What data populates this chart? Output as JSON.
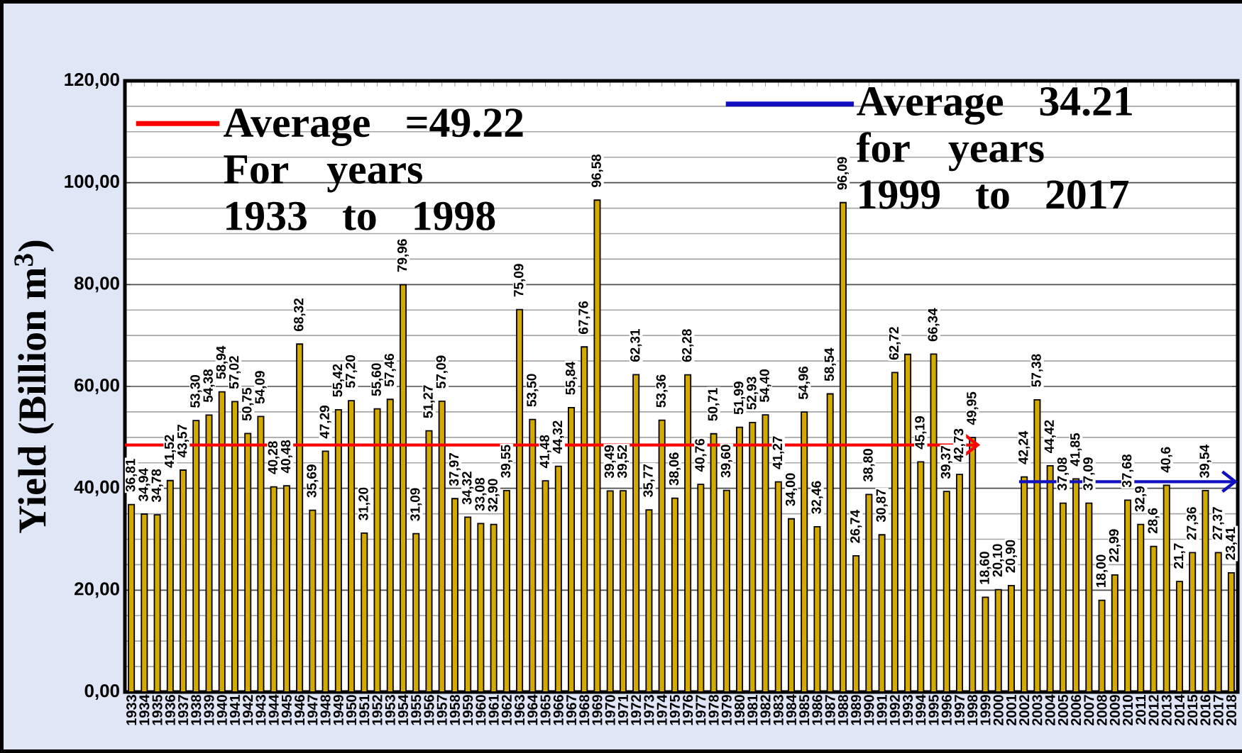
{
  "chart_data": {
    "type": "bar",
    "ylabel": "Yield  (Billion m$^{3}$)",
    "x": [
      1933,
      1934,
      1935,
      1936,
      1937,
      1938,
      1939,
      1940,
      1941,
      1942,
      1943,
      1944,
      1945,
      1946,
      1947,
      1948,
      1949,
      1950,
      1951,
      1952,
      1953,
      1954,
      1955,
      1956,
      1957,
      1958,
      1959,
      1960,
      1961,
      1962,
      1963,
      1964,
      1965,
      1966,
      1967,
      1968,
      1969,
      1970,
      1971,
      1972,
      1973,
      1974,
      1975,
      1976,
      1977,
      1978,
      1979,
      1980,
      1981,
      1982,
      1983,
      1984,
      1985,
      1986,
      1987,
      1988,
      1989,
      1990,
      1991,
      1992,
      1993,
      1994,
      1995,
      1996,
      1997,
      1998,
      1999,
      2000,
      2001,
      2002,
      2003,
      2004,
      2005,
      2006,
      2007,
      2008,
      2009,
      2010,
      2011,
      2012,
      2013,
      2014,
      2015,
      2016,
      2017,
      2018
    ],
    "series": [
      {
        "color": "#d4aa00",
        "values": [
          36.81,
          34.94,
          34.78,
          41.52,
          43.57,
          53.3,
          54.38,
          58.94,
          57.02,
          50.75,
          54.09,
          40.28,
          40.48,
          68.32,
          35.69,
          47.29,
          55.42,
          57.2,
          31.2,
          55.6,
          57.46,
          79.96,
          31.09,
          51.27,
          57.09,
          37.97,
          34.32,
          33.08,
          32.9,
          39.55,
          75.09,
          53.5,
          41.48,
          44.32,
          55.84,
          67.76,
          96.58,
          39.49,
          39.52,
          62.31,
          35.77,
          53.36,
          38.06,
          62.28,
          40.76,
          50.71,
          39.6,
          51.99,
          52.93,
          54.4,
          41.27,
          34.0,
          54.96,
          32.46,
          58.54,
          96.09,
          26.74,
          38.8,
          30.87,
          62.72,
          66.3,
          45.19,
          66.34,
          39.37,
          42.73,
          49.95,
          18.6,
          20.1,
          20.9,
          42.24,
          57.38,
          44.42,
          37.08,
          41.85,
          37.09,
          18.0,
          22.99,
          37.68,
          32.9,
          28.6,
          40.6,
          21.7,
          27.36,
          39.54,
          27.37,
          23.41
        ],
        "value_labels": [
          "36,81",
          "34,94",
          "34,78",
          "41,52",
          "43,57",
          "53,30",
          "54,38",
          "58,94",
          "57,02",
          "50,75",
          "54,09",
          "40,28",
          "40,48",
          "68,32",
          "35,69",
          "47,29",
          "55,42",
          "57,20",
          "31,20",
          "55,60",
          "57,46",
          "79,96",
          "31,09",
          "51,27",
          "57,09",
          "37,97",
          "34,32",
          "33,08",
          "32,90",
          "39,55",
          "75,09",
          "53,50",
          "41,48",
          "44,32",
          "55,84",
          "67,76",
          "96,58",
          "39,49",
          "39,52",
          "62,31",
          "35,77",
          "53,36",
          "38,06",
          "62,28",
          "40,76",
          "50,71",
          "39,60",
          "51,99",
          "52,93",
          "54,40",
          "41,27",
          "34,00",
          "54,96",
          "32,46",
          "58,54",
          "96,09",
          "26,74",
          "38,80",
          "30,87",
          "62,72",
          null,
          "45,19",
          "66,34",
          "39,37",
          "42,73",
          "49,95",
          "18,60",
          "20,10",
          "20,90",
          "42,24",
          "57,38",
          "44,42",
          "37,08",
          "41,85",
          "37,09",
          "18,00",
          "22,99",
          "37,68",
          "32,9",
          "28,6",
          "40,6",
          "21,7",
          "27,36",
          "39,54",
          "27,37",
          "23,41"
        ]
      },
      {
        "type": "line",
        "name": "Average =49.22 For years 1933 to 1998",
        "color": "#ff0000",
        "x": [
          1932.5,
          1998.6
        ],
        "values": [
          48.5,
          48.5
        ]
      },
      {
        "type": "line",
        "name": "Average 34.21 for years 1999 to 2017",
        "color": "#1010c0",
        "x": [
          2001.6,
          2018.5
        ],
        "values": [
          41.3,
          41.3
        ]
      }
    ],
    "xlim": [
      1932.5,
      2018.5
    ],
    "xticks": [
      1933,
      1934,
      1935,
      1936,
      1937,
      1938,
      1939,
      1940,
      1941,
      1942,
      1943,
      1944,
      1945,
      1946,
      1947,
      1948,
      1949,
      1950,
      1951,
      1952,
      1953,
      1954,
      1955,
      1956,
      1957,
      1958,
      1959,
      1960,
      1961,
      1962,
      1963,
      1964,
      1965,
      1966,
      1967,
      1968,
      1969,
      1970,
      1971,
      1972,
      1973,
      1974,
      1975,
      1976,
      1977,
      1978,
      1979,
      1980,
      1981,
      1982,
      1983,
      1984,
      1985,
      1986,
      1987,
      1988,
      1989,
      1990,
      1991,
      1992,
      1993,
      1994,
      1995,
      1996,
      1997,
      1998,
      1999,
      2000,
      2001,
      2002,
      2003,
      2004,
      2005,
      2006,
      2007,
      2008,
      2009,
      2010,
      2011,
      2012,
      2013,
      2014,
      2015,
      2016,
      2017,
      2018
    ],
    "ylim": [
      0,
      120
    ],
    "yticks": [
      {
        "value": 0,
        "label": "0,00"
      },
      {
        "value": 20,
        "label": "20,00"
      },
      {
        "value": 40,
        "label": "40,00"
      },
      {
        "value": 60,
        "label": "60,00"
      },
      {
        "value": 80,
        "label": "80,00"
      },
      {
        "value": 100,
        "label": "100,00"
      },
      {
        "value": 120,
        "label": "120,00"
      }
    ],
    "grid": "y",
    "legend": "top"
  }
}
